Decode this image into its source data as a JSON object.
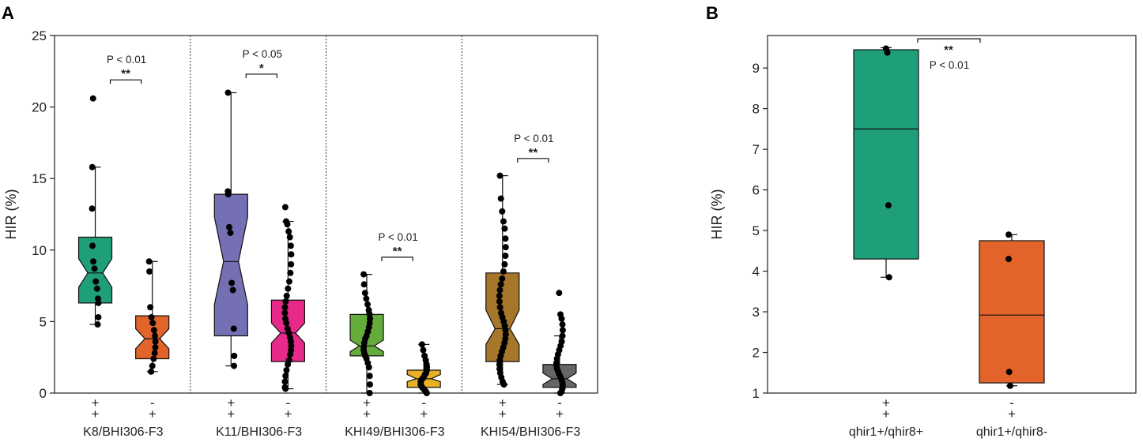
{
  "chart_data": [
    {
      "panel": "A",
      "type": "boxplot",
      "notched": true,
      "ylabel": "HIR (%)",
      "ylim": [
        0,
        25
      ],
      "yticks": [
        0,
        5,
        10,
        15,
        20,
        25
      ],
      "genotype_markers": [
        [
          "+",
          "+"
        ],
        [
          "-",
          "+"
        ]
      ],
      "groups": [
        {
          "name": "K8/BHI306-F3",
          "boxes": [
            {
              "genotype": "+/+",
              "color": "#1f9e7a",
              "q1": 6.3,
              "median": 8.4,
              "q3": 10.9,
              "notch_low": 7.4,
              "notch_high": 9.4,
              "whisker_low": 4.8,
              "whisker_high": 15.8,
              "points": [
                20.6,
                15.8,
                12.9,
                10.3,
                9.2,
                8.7,
                7.8,
                7.3,
                6.6,
                6.3,
                5.3,
                4.8
              ]
            },
            {
              "genotype": "-/+",
              "color": "#e3642a",
              "q1": 2.4,
              "median": 3.8,
              "q3": 5.4,
              "notch_low": 3.1,
              "notch_high": 4.5,
              "whisker_low": 1.5,
              "whisker_high": 9.2,
              "points": [
                9.2,
                8.5,
                6.0,
                5.3,
                4.9,
                4.4,
                4.0,
                3.6,
                3.2,
                2.8,
                2.4,
                1.9,
                1.5
              ]
            }
          ],
          "significance": {
            "p_text": "P < 0.01",
            "stars": "**",
            "y": 21.9
          }
        },
        {
          "name": "K11/BHI306-F3",
          "boxes": [
            {
              "genotype": "+/+",
              "color": "#7570b4",
              "q1": 4.0,
              "median": 9.2,
              "q3": 13.9,
              "notch_low": 6.2,
              "notch_high": 12.3,
              "whisker_low": 1.9,
              "whisker_high": 21.0,
              "points": [
                21.0,
                14.1,
                13.9,
                11.6,
                11.2,
                7.7,
                7.2,
                4.5,
                2.6,
                1.9
              ]
            },
            {
              "genotype": "-/+",
              "color": "#e7298a",
              "q1": 2.2,
              "median": 4.2,
              "q3": 6.5,
              "notch_low": 3.5,
              "notch_high": 4.9,
              "whisker_low": 0.3,
              "whisker_high": 12.0,
              "points": [
                13.0,
                12.0,
                11.8,
                11.3,
                10.9,
                10.3,
                9.7,
                9.0,
                8.4,
                7.8,
                7.3,
                6.8,
                6.4,
                6.0,
                5.6,
                5.2,
                4.9,
                4.5,
                4.2,
                3.9,
                3.6,
                3.3,
                3.0,
                2.7,
                2.3,
                2.0,
                1.6,
                1.2,
                0.8,
                0.4,
                0.3
              ]
            }
          ],
          "significance": {
            "p_text": "P < 0.05",
            "stars": "*",
            "y": 22.3
          }
        },
        {
          "name": "KHI49/BHI306-F3",
          "boxes": [
            {
              "genotype": "+/+",
              "color": "#65ad3a",
              "q1": 2.6,
              "median": 3.3,
              "q3": 5.5,
              "notch_low": 2.9,
              "notch_high": 3.7,
              "whisker_low": 0.0,
              "whisker_high": 8.3,
              "points": [
                8.3,
                7.6,
                7.0,
                6.6,
                6.2,
                5.8,
                5.5,
                5.2,
                4.9,
                4.6,
                4.3,
                4.0,
                3.8,
                3.5,
                3.2,
                3.0,
                2.8,
                2.6,
                2.4,
                2.1,
                1.8,
                1.2,
                0.6,
                0.0
              ]
            },
            {
              "genotype": "-/+",
              "color": "#e7b123",
              "q1": 0.4,
              "median": 1.0,
              "q3": 1.6,
              "notch_low": 0.8,
              "notch_high": 1.3,
              "whisker_low": 0.0,
              "whisker_high": 3.4,
              "points": [
                3.4,
                3.0,
                2.6,
                2.3,
                2.0,
                1.8,
                1.6,
                1.4,
                1.3,
                1.1,
                1.0,
                0.9,
                0.8,
                0.6,
                0.5,
                0.4,
                0.3,
                0.2,
                0.1,
                0.0
              ]
            }
          ],
          "significance": {
            "p_text": "P < 0.01",
            "stars": "**",
            "y": 9.5
          }
        },
        {
          "name": "KHI54/BHI306-F3",
          "boxes": [
            {
              "genotype": "+/+",
              "color": "#a6762a",
              "q1": 2.2,
              "median": 4.5,
              "q3": 8.4,
              "notch_low": 3.4,
              "notch_high": 5.8,
              "whisker_low": 0.6,
              "whisker_high": 15.2,
              "points": [
                15.2,
                13.6,
                12.7,
                12.0,
                11.5,
                10.8,
                10.2,
                9.6,
                9.0,
                8.5,
                8.0,
                7.6,
                7.2,
                6.8,
                6.4,
                6.0,
                5.6,
                5.3,
                5.0,
                4.7,
                4.4,
                4.1,
                3.8,
                3.5,
                3.2,
                2.9,
                2.6,
                2.3,
                2.0,
                1.7,
                1.4,
                1.1,
                0.8,
                0.6
              ]
            },
            {
              "genotype": "-/+",
              "color": "#666666",
              "q1": 0.4,
              "median": 1.0,
              "q3": 2.0,
              "notch_low": 0.6,
              "notch_high": 1.4,
              "whisker_low": 0.0,
              "whisker_high": 4.0,
              "points": [
                7.0,
                5.5,
                5.2,
                4.8,
                4.4,
                4.0,
                3.6,
                3.3,
                3.0,
                2.7,
                2.4,
                2.1,
                1.9,
                1.7,
                1.5,
                1.3,
                1.1,
                0.9,
                0.7,
                0.5,
                0.3,
                0.1,
                0.0
              ]
            }
          ],
          "significance": {
            "p_text": "P < 0.01",
            "stars": "**",
            "y": 16.4
          }
        }
      ]
    },
    {
      "panel": "B",
      "type": "boxplot",
      "notched": false,
      "ylabel": "HIR (%)",
      "ylim": [
        1,
        9.8
      ],
      "yticks": [
        1,
        2,
        3,
        4,
        5,
        6,
        7,
        8,
        9
      ],
      "genotype_markers": [
        [
          "+",
          "+"
        ],
        [
          "-",
          "+"
        ]
      ],
      "boxes": [
        {
          "name": "qhir1+/qhir8+",
          "color": "#1f9e7a",
          "q1": 4.3,
          "median": 7.5,
          "q3": 9.45,
          "whisker_low": 3.85,
          "whisker_high": 9.5,
          "points": [
            9.48,
            9.38,
            5.62,
            3.85
          ]
        },
        {
          "name": "qhir1+/qhir8-",
          "color": "#e3642a",
          "q1": 1.25,
          "median": 2.92,
          "q3": 4.75,
          "whisker_low": 1.18,
          "whisker_high": 4.9,
          "points": [
            4.9,
            4.3,
            1.52,
            1.18
          ]
        }
      ],
      "significance": {
        "p_text": "P < 0.01",
        "stars": "**",
        "y": 9.72
      }
    }
  ],
  "panel_labels": {
    "a": "A",
    "b": "B"
  }
}
